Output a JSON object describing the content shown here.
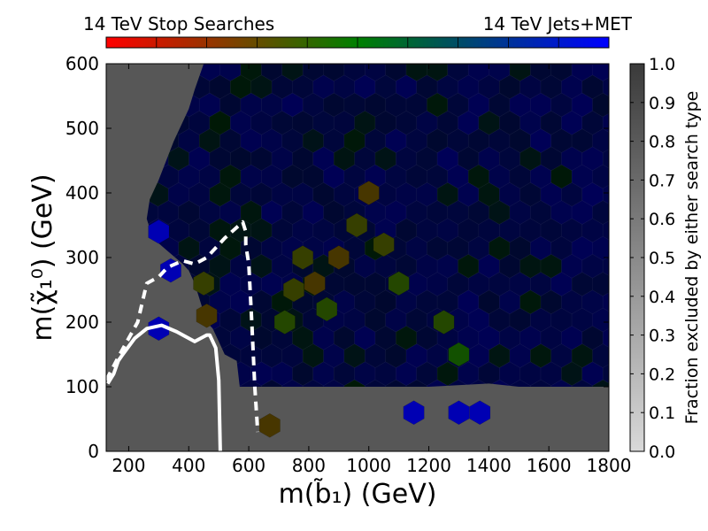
{
  "chart_data": {
    "type": "heatmap",
    "subtype": "hexbin",
    "xlabel": "m(b̃₁) (GeV)",
    "ylabel": "m(χ̃₁⁰) (GeV)",
    "xlim": [
      125,
      1800
    ],
    "ylim": [
      0,
      600
    ],
    "xticks": [
      200,
      400,
      600,
      800,
      1000,
      1200,
      1400,
      1600,
      1800
    ],
    "yticks": [
      0,
      100,
      200,
      300,
      400,
      500,
      600
    ],
    "top_colorbar": {
      "left_label": "14 TeV Stop Searches",
      "right_label": "14 TeV Jets+MET",
      "left_color": "#ff0000",
      "mid_color": "#008000",
      "right_color": "#0000ff",
      "segments": 10
    },
    "right_colorbar": {
      "label": "Fraction excluded by either search type",
      "range": [
        0.0,
        1.0
      ],
      "ticks": [
        "0.0",
        "0.1",
        "0.2",
        "0.3",
        "0.4",
        "0.5",
        "0.6",
        "0.7",
        "0.8",
        "0.9",
        "1.0"
      ],
      "low_color": "#d9d9d9",
      "high_color": "#3a3a3a"
    },
    "excluded_region_color": "#575757",
    "contours": [
      {
        "name": "solid",
        "style": "solid",
        "color": "#ffffff",
        "points": [
          [
            130,
            105
          ],
          [
            150,
            120
          ],
          [
            165,
            140
          ],
          [
            180,
            150
          ],
          [
            220,
            175
          ],
          [
            260,
            190
          ],
          [
            310,
            195
          ],
          [
            360,
            185
          ],
          [
            420,
            170
          ],
          [
            460,
            180
          ],
          [
            470,
            180
          ],
          [
            490,
            160
          ],
          [
            500,
            110
          ],
          [
            505,
            0
          ]
        ]
      },
      {
        "name": "dashed",
        "style": "dashed",
        "color": "#ffffff",
        "points": [
          [
            125,
            110
          ],
          [
            170,
            150
          ],
          [
            230,
            200
          ],
          [
            260,
            260
          ],
          [
            300,
            270
          ],
          [
            330,
            285
          ],
          [
            380,
            295
          ],
          [
            420,
            290
          ],
          [
            460,
            300
          ],
          [
            520,
            330
          ],
          [
            580,
            355
          ],
          [
            590,
            340
          ],
          [
            590,
            320
          ],
          [
            600,
            290
          ],
          [
            610,
            200
          ],
          [
            620,
            100
          ],
          [
            630,
            30
          ]
        ]
      }
    ],
    "excluded_boundary": [
      [
        125,
        0
      ],
      [
        1800,
        0
      ],
      [
        1800,
        100
      ],
      [
        1700,
        100
      ],
      [
        1500,
        100
      ],
      [
        1400,
        105
      ],
      [
        1200,
        100
      ],
      [
        1000,
        100
      ],
      [
        800,
        100
      ],
      [
        700,
        100
      ],
      [
        600,
        100
      ],
      [
        570,
        100
      ],
      [
        560,
        140
      ],
      [
        520,
        150
      ],
      [
        500,
        170
      ],
      [
        480,
        190
      ],
      [
        460,
        200
      ],
      [
        440,
        230
      ],
      [
        420,
        260
      ],
      [
        400,
        280
      ],
      [
        380,
        290
      ],
      [
        330,
        310
      ],
      [
        280,
        330
      ],
      [
        260,
        360
      ],
      [
        270,
        390
      ],
      [
        300,
        420
      ],
      [
        350,
        480
      ],
      [
        400,
        530
      ],
      [
        420,
        560
      ],
      [
        450,
        600
      ],
      [
        125,
        600
      ]
    ],
    "cells": [
      {
        "x": 720,
        "y": 200,
        "ratio": 0.4,
        "frac": 1.0
      },
      {
        "x": 750,
        "y": 250,
        "ratio": 0.35,
        "frac": 1.0
      },
      {
        "x": 780,
        "y": 300,
        "ratio": 0.35,
        "frac": 1.0
      },
      {
        "x": 820,
        "y": 260,
        "ratio": 0.3,
        "frac": 1.0
      },
      {
        "x": 860,
        "y": 220,
        "ratio": 0.4,
        "frac": 1.0
      },
      {
        "x": 900,
        "y": 300,
        "ratio": 0.3,
        "frac": 1.0
      },
      {
        "x": 960,
        "y": 350,
        "ratio": 0.35,
        "frac": 1.0
      },
      {
        "x": 1000,
        "y": 400,
        "ratio": 0.3,
        "frac": 1.0
      },
      {
        "x": 1050,
        "y": 320,
        "ratio": 0.35,
        "frac": 1.0
      },
      {
        "x": 1100,
        "y": 260,
        "ratio": 0.4,
        "frac": 1.0
      },
      {
        "x": 1250,
        "y": 200,
        "ratio": 0.4,
        "frac": 1.0
      },
      {
        "x": 1300,
        "y": 150,
        "ratio": 0.45,
        "frac": 1.0
      },
      {
        "x": 1150,
        "y": 60,
        "ratio": 1.0,
        "frac": 1.0
      },
      {
        "x": 1300,
        "y": 60,
        "ratio": 1.0,
        "frac": 1.0
      },
      {
        "x": 1370,
        "y": 60,
        "ratio": 1.0,
        "frac": 1.0
      },
      {
        "x": 670,
        "y": 40,
        "ratio": 0.3,
        "frac": 1.0
      },
      {
        "x": 300,
        "y": 190,
        "ratio": 1.0,
        "frac": 1.0
      },
      {
        "x": 340,
        "y": 280,
        "ratio": 1.0,
        "frac": 1.0
      },
      {
        "x": 300,
        "y": 340,
        "ratio": 1.0,
        "frac": 1.0
      },
      {
        "x": 460,
        "y": 210,
        "ratio": 0.3,
        "frac": 1.0
      },
      {
        "x": 450,
        "y": 260,
        "ratio": 0.35,
        "frac": 1.0
      }
    ]
  }
}
